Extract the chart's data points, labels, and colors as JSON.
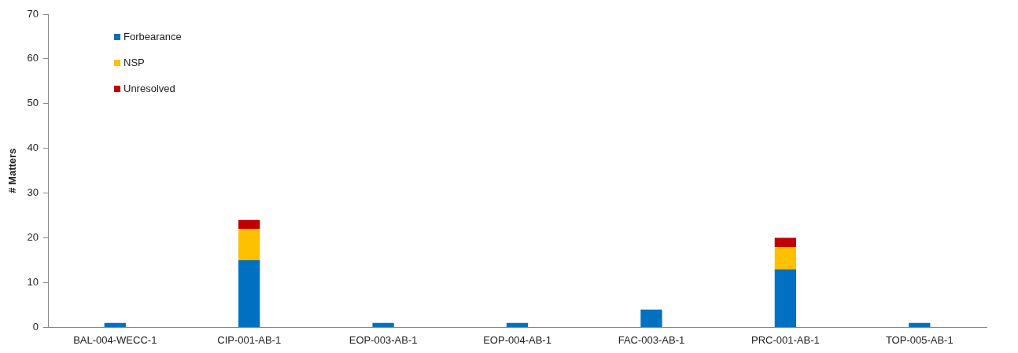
{
  "chart_data": {
    "type": "bar",
    "stacked": true,
    "ylabel": "# Matters",
    "categories": [
      "BAL-004-WECC-1",
      "CIP-001-AB-1",
      "EOP-003-AB-1",
      "EOP-004-AB-1",
      "FAC-003-AB-1",
      "PRC-001-AB-1",
      "TOP-005-AB-1"
    ],
    "series": [
      {
        "name": "Forbearance",
        "color": "#0070c0",
        "values": [
          1,
          15,
          1,
          1,
          4,
          13,
          1
        ]
      },
      {
        "name": "NSP",
        "color": "#ffc000",
        "values": [
          null,
          7,
          null,
          null,
          null,
          5,
          null
        ]
      },
      {
        "name": "Unresolved",
        "color": "#c00000",
        "values": [
          null,
          2,
          null,
          null,
          null,
          2,
          null
        ]
      }
    ],
    "ylim": [
      0,
      70
    ],
    "yticks": [
      0,
      10,
      20,
      30,
      40,
      50,
      60,
      70
    ],
    "grid": false,
    "legend": "top left"
  }
}
